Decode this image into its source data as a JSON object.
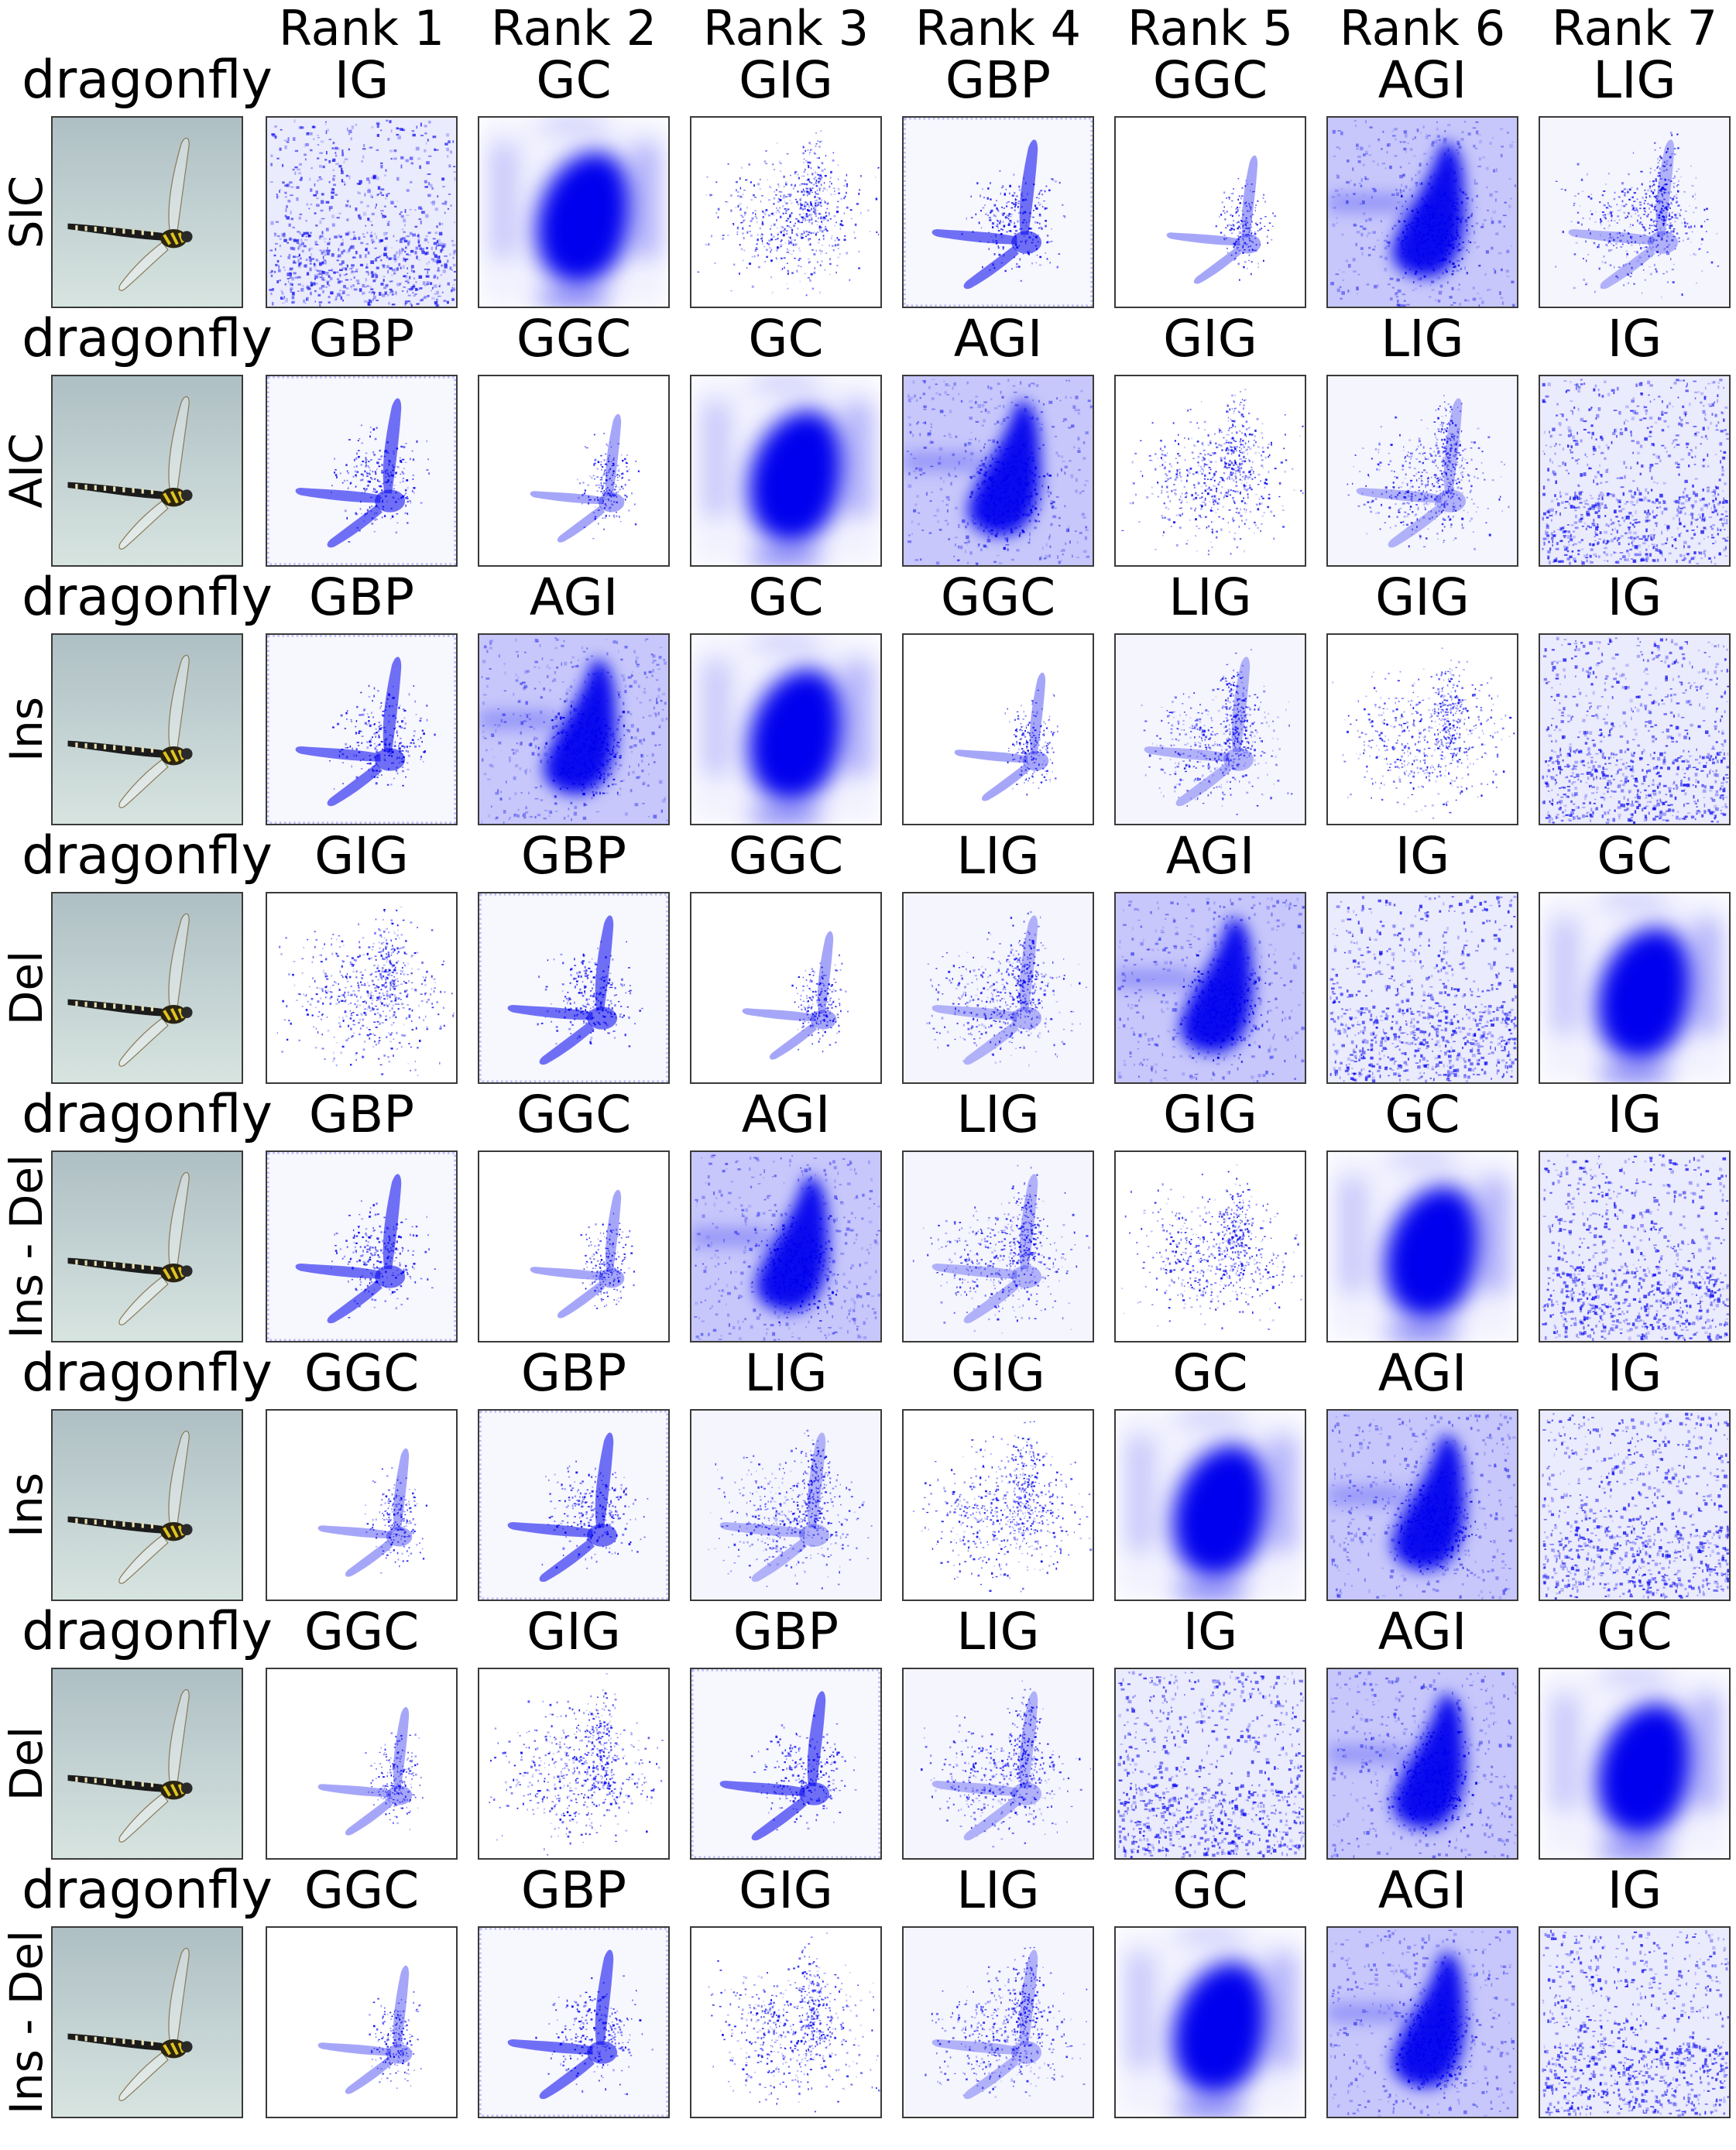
{
  "rank_headers": [
    "Rank 1",
    "Rank 2",
    "Rank 3",
    "Rank 4",
    "Rank 5",
    "Rank 6",
    "Rank 7"
  ],
  "rows": [
    {
      "row_label": "SIC",
      "class_label": "dragonfly",
      "ranking": [
        "IG",
        "GC",
        "GIG",
        "GBP",
        "GGC",
        "AGI",
        "LIG"
      ]
    },
    {
      "row_label": "AIC",
      "class_label": "dragonfly",
      "ranking": [
        "GBP",
        "GGC",
        "GC",
        "AGI",
        "GIG",
        "LIG",
        "IG"
      ]
    },
    {
      "row_label": "Ins",
      "class_label": "dragonfly",
      "ranking": [
        "GBP",
        "AGI",
        "GC",
        "GGC",
        "LIG",
        "GIG",
        "IG"
      ]
    },
    {
      "row_label": "Del",
      "class_label": "dragonfly",
      "ranking": [
        "GIG",
        "GBP",
        "GGC",
        "LIG",
        "AGI",
        "IG",
        "GC"
      ]
    },
    {
      "row_label": "Ins - Del",
      "class_label": "dragonfly",
      "ranking": [
        "GBP",
        "GGC",
        "AGI",
        "LIG",
        "GIG",
        "GC",
        "IG"
      ]
    },
    {
      "row_label": "Ins",
      "class_label": "dragonfly",
      "ranking": [
        "GGC",
        "GBP",
        "LIG",
        "GIG",
        "GC",
        "AGI",
        "IG"
      ]
    },
    {
      "row_label": "Del",
      "class_label": "dragonfly",
      "ranking": [
        "GGC",
        "GIG",
        "GBP",
        "LIG",
        "IG",
        "AGI",
        "GC"
      ]
    },
    {
      "row_label": "Ins - Del",
      "class_label": "dragonfly",
      "ranking": [
        "GGC",
        "GBP",
        "GIG",
        "LIG",
        "GC",
        "AGI",
        "IG"
      ]
    }
  ],
  "colors": {
    "saliency": "#0000ee",
    "photo_background_top": "#aebfc4",
    "photo_background_bottom": "#d7e4e0",
    "frame": "#3a3a3a"
  }
}
